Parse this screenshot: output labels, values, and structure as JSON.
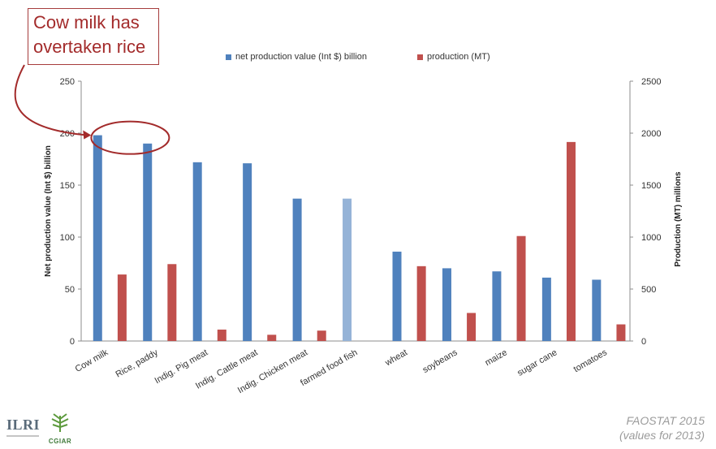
{
  "callout": {
    "line1": "Cow milk has",
    "line2": "overtaken rice"
  },
  "logos": {
    "ilri": "ILRI",
    "cgiar": "CGIAR"
  },
  "source": {
    "line1": "FAOSTAT 2015",
    "line2": "(values for 2013)"
  },
  "colors": {
    "blue": "#4f81bd",
    "blue_light": "#95b3d7",
    "red": "#c0504d",
    "annotation": "#a32b2b"
  },
  "chart_data": {
    "type": "bar",
    "categories": [
      "Cow milk",
      "Rice, paddy",
      "Indig. Pig meat",
      "Indig. Cattle meat",
      "Indig. Chicken meat",
      "farmed food fish",
      "wheat",
      "soybeans",
      "maize",
      "sugar cane",
      "tomatoes"
    ],
    "series": [
      {
        "name": "net production value (Int $) billion",
        "axis": "left",
        "color": "#4f81bd",
        "values": [
          198,
          190,
          172,
          171,
          137,
          137,
          86,
          70,
          67,
          61,
          59
        ]
      },
      {
        "name": "production (MT)",
        "axis": "right",
        "color": "#c0504d",
        "values": [
          640,
          740,
          110,
          60,
          100,
          null,
          720,
          270,
          1010,
          1915,
          160
        ]
      }
    ],
    "highlight": {
      "category": "farmed food fish",
      "series": 0,
      "color": "#95b3d7"
    },
    "ylabel": "Net production value (Int $) billion",
    "y2label": "Production (MT) millions",
    "ylim": [
      0,
      250
    ],
    "y2lim": [
      0,
      2500
    ],
    "yticks": [
      "0",
      "50",
      "100",
      "150",
      "200",
      "250"
    ],
    "y2ticks": [
      "0",
      "500",
      "1000",
      "1500",
      "2000",
      "2500"
    ],
    "grid": false,
    "legend": "top-center"
  }
}
